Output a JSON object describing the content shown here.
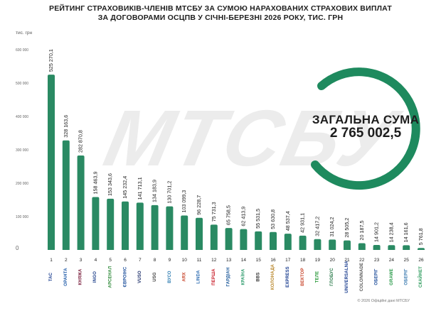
{
  "title_line1": "РЕЙТИНГ СТРАХОВИКІВ-ЧЛЕНІВ МТСБУ ЗА СУМОЮ НАРАХОВАНИХ СТРАХОВИХ ВИПЛАТ",
  "title_line2": "ЗА ДОГОВОРАМИ ОСЦПВ У СІЧНІ-БЕРЕЗНІ 2026 РОКУ, ТИС. ГРН",
  "unit_label": "тис. грн",
  "watermark": "МТСБУ",
  "total_label": "ЗАГАЛЬНА СУМА",
  "total_value": "2 765 002,5",
  "source": "© 2026 Офіційні дані МТСБУ",
  "colors": {
    "bar": "#2a8a63",
    "ring": "#1e8a5e",
    "text": "#1d1d1d"
  },
  "logos": [
    {
      "text": "ТАС",
      "color": "#1a3d8f"
    },
    {
      "text": "ОРАНТА",
      "color": "#1e5aa8"
    },
    {
      "text": "КНЯЖА",
      "color": "#7a1f3d"
    },
    {
      "text": "INGO",
      "color": "#1d3f8a"
    },
    {
      "text": "АРСЕНАЛ",
      "color": "#2f8a3a"
    },
    {
      "text": "ЄВРОІНС",
      "color": "#1a4d9a"
    },
    {
      "text": "VUSO",
      "color": "#1d2f6a"
    },
    {
      "text": "USG",
      "color": "#444444"
    },
    {
      "text": "ВУСО",
      "color": "#2a7ab0"
    },
    {
      "text": "ARX",
      "color": "#c8442a"
    },
    {
      "text": "LINDA",
      "color": "#2a6ab0"
    },
    {
      "text": "ПЕРША",
      "color": "#c81e2a"
    },
    {
      "text": "ГАРДІАН",
      "color": "#1e5a9a"
    },
    {
      "text": "КРАЇНА",
      "color": "#2a9a6a"
    },
    {
      "text": "BBS",
      "color": "#333333"
    },
    {
      "text": "КОЛОНАДА",
      "color": "#b8862a"
    },
    {
      "text": "EXPRESS",
      "color": "#1a3d8f"
    },
    {
      "text": "ВЕКТОР",
      "color": "#c8442a"
    },
    {
      "text": "ТЕЛЕ",
      "color": "#2a9a3a"
    },
    {
      "text": "ГЛОБУС",
      "color": "#2a7a4a"
    },
    {
      "text": "UNIVERSALNA",
      "color": "#1a3d8f"
    },
    {
      "text": "COLONNADE",
      "color": "#555555"
    },
    {
      "text": "ОБЕРІГ",
      "color": "#1e4d9a"
    },
    {
      "text": "GRAWE",
      "color": "#2a9a4a"
    },
    {
      "text": "ОБЕРІГ",
      "color": "#3a7ab0"
    },
    {
      "text": "СКАЙНЕТ",
      "color": "#2a9a5a"
    }
  ],
  "chart_data": {
    "type": "bar",
    "title": "РЕЙТИНГ СТРАХОВИКІВ-ЧЛЕНІВ МТСБУ ЗА СУМОЮ НАРАХОВАНИХ СТРАХОВИХ ВИПЛАТ ЗА ДОГОВОРАМИ ОСЦПВ У СІЧНІ-БЕРЕЗНІ 2026 РОКУ, ТИС. ГРН",
    "ylabel": "тис. грн",
    "ylim": [
      0,
      600000
    ],
    "yticks": [
      0,
      100000,
      200000,
      300000,
      400000,
      500000,
      600000
    ],
    "ytick_labels": [
      "0",
      "100 000",
      "200 000",
      "300 000",
      "400 000",
      "500 000",
      "600 000"
    ],
    "categories": [
      "1",
      "2",
      "3",
      "4",
      "5",
      "6",
      "7",
      "8",
      "9",
      "10",
      "11",
      "12",
      "13",
      "14",
      "15",
      "16",
      "17",
      "18",
      "19",
      "20",
      "21",
      "22",
      "23",
      "24",
      "25",
      "26"
    ],
    "values": [
      525270.1,
      328163.6,
      282870.8,
      158463.9,
      153343.6,
      145232.4,
      141713.1,
      134183.9,
      130701.2,
      103099.3,
      96228.7,
      75731.3,
      65758.5,
      62413.9,
      55531.5,
      53630.8,
      48537.4,
      42931.1,
      32417.2,
      31024.2,
      28505.2,
      20187.5,
      14901.2,
      14238.4,
      14161.6,
      5761.8
    ],
    "value_labels": [
      "525 270,1",
      "328 163,6",
      "282 870,8",
      "158 463,9",
      "153 343,6",
      "145 232,4",
      "141 713,1",
      "134 183,9",
      "130 701,2",
      "103 099,3",
      "96 228,7",
      "75 731,3",
      "65 758,5",
      "62 413,9",
      "55 531,5",
      "53 630,8",
      "48 537,4",
      "42 931,1",
      "32 417,2",
      "31 024,2",
      "28 505,2",
      "20 187,5",
      "14 901,2",
      "14 238,4",
      "14 161,6",
      "5 761,8"
    ],
    "grid": false,
    "legend": "none"
  }
}
